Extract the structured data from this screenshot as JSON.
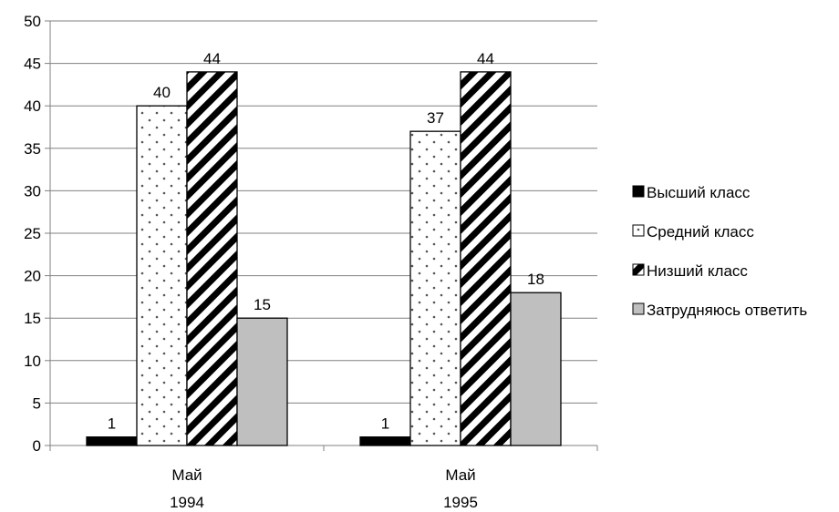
{
  "chart_data": {
    "type": "bar",
    "categories": [
      [
        "Май",
        "1994"
      ],
      [
        "Май",
        "1995"
      ]
    ],
    "series": [
      {
        "name": "Высший класс",
        "values": [
          1,
          1
        ],
        "pattern": "solid-black"
      },
      {
        "name": "Средний класс",
        "values": [
          40,
          37
        ],
        "pattern": "dots"
      },
      {
        "name": "Низший класс",
        "values": [
          44,
          44
        ],
        "pattern": "diagonal-stripes"
      },
      {
        "name": "Затрудняюсь ответить",
        "values": [
          15,
          18
        ],
        "pattern": "solid-gray"
      }
    ],
    "title": "",
    "xlabel": "",
    "ylabel": "",
    "ylim": [
      0,
      50
    ],
    "yticks": [
      0,
      5,
      10,
      15,
      20,
      25,
      30,
      35,
      40,
      45,
      50
    ],
    "grid": true,
    "legend_position": "right",
    "colors": {
      "solid-black": "#000000",
      "dots-bg": "#ffffff",
      "dots-fg": "#555555",
      "stripes-fg": "#000000",
      "solid-gray": "#bfbfbf",
      "grid": "#808080"
    }
  }
}
